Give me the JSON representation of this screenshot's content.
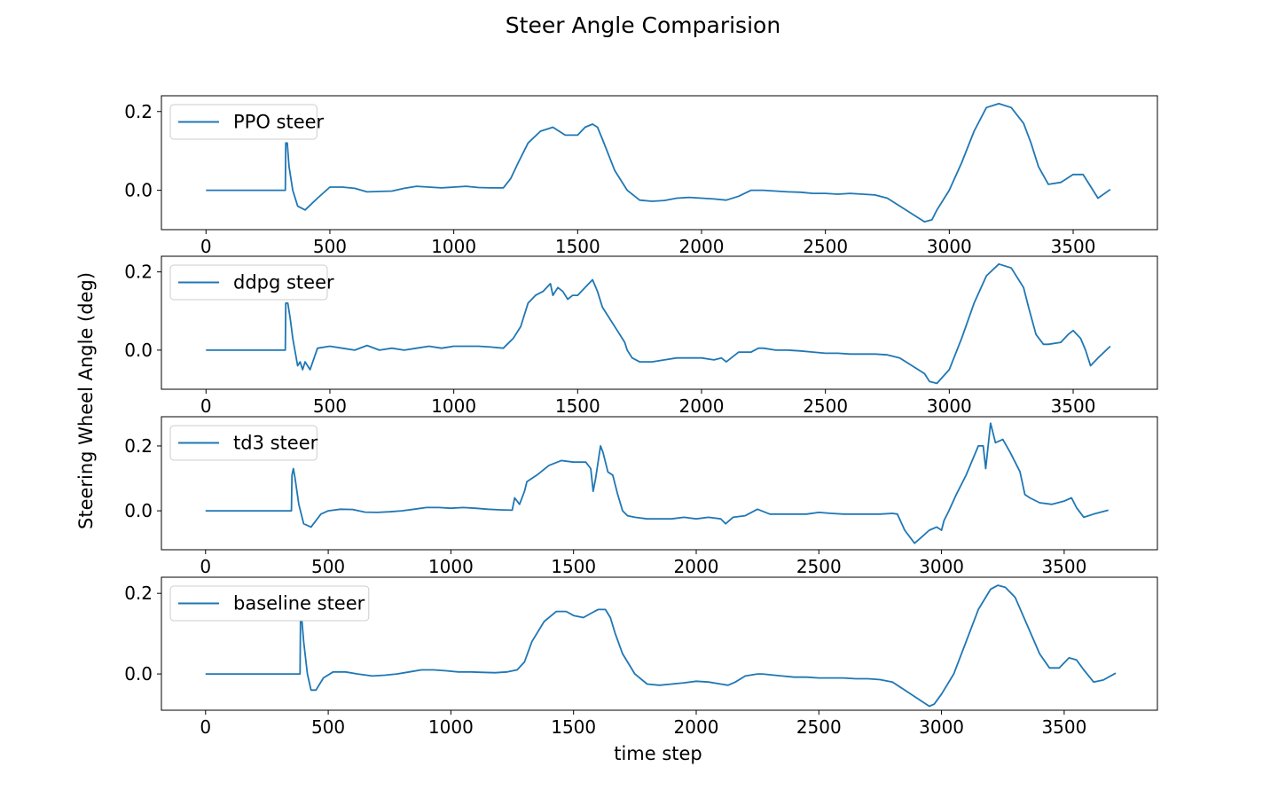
{
  "figure": {
    "title": "Steer Angle Comparision",
    "ylabel": "Steering Wheel Angle (deg)",
    "xlabel": "time step",
    "line_color": "#1f77b4"
  },
  "chart_data": [
    {
      "type": "line",
      "series": [
        {
          "name": "PPO steer"
        }
      ],
      "xlim": [
        -180,
        3840
      ],
      "ylim": [
        -0.1,
        0.24
      ],
      "xticks": [
        0,
        500,
        1000,
        1500,
        2000,
        2500,
        3000,
        3500
      ],
      "xtick_labels": [
        "0",
        "500",
        "1000",
        "1500",
        "2000",
        "2500",
        "3000",
        "3500"
      ],
      "yticks": [
        0.0,
        0.2
      ],
      "ytick_labels": [
        "0.0",
        "0.2"
      ],
      "legend": "upper-left",
      "x": [
        0,
        320,
        322,
        328,
        335,
        350,
        370,
        400,
        450,
        500,
        550,
        600,
        650,
        700,
        750,
        800,
        850,
        900,
        950,
        1000,
        1050,
        1100,
        1150,
        1200,
        1230,
        1260,
        1300,
        1350,
        1400,
        1450,
        1500,
        1530,
        1560,
        1580,
        1600,
        1650,
        1700,
        1750,
        1800,
        1850,
        1900,
        1950,
        2000,
        2050,
        2100,
        2150,
        2200,
        2250,
        2300,
        2350,
        2400,
        2450,
        2500,
        2550,
        2600,
        2650,
        2700,
        2750,
        2800,
        2850,
        2900,
        2930,
        2950,
        3000,
        3050,
        3100,
        3150,
        3200,
        3250,
        3300,
        3330,
        3360,
        3400,
        3450,
        3500,
        3540,
        3570,
        3600,
        3650
      ],
      "y": [
        0.0,
        0.0,
        0.12,
        0.12,
        0.06,
        0.0,
        -0.04,
        -0.05,
        -0.02,
        0.008,
        0.008,
        0.005,
        -0.004,
        -0.003,
        -0.002,
        0.005,
        0.01,
        0.008,
        0.006,
        0.008,
        0.01,
        0.007,
        0.006,
        0.006,
        0.03,
        0.07,
        0.12,
        0.15,
        0.16,
        0.14,
        0.14,
        0.16,
        0.168,
        0.16,
        0.13,
        0.05,
        0.0,
        -0.025,
        -0.028,
        -0.026,
        -0.02,
        -0.018,
        -0.02,
        -0.022,
        -0.025,
        -0.015,
        0.0,
        0.0,
        -0.002,
        -0.004,
        -0.005,
        -0.008,
        -0.008,
        -0.01,
        -0.008,
        -0.01,
        -0.012,
        -0.02,
        -0.04,
        -0.06,
        -0.08,
        -0.075,
        -0.05,
        0.0,
        0.07,
        0.15,
        0.21,
        0.22,
        0.21,
        0.17,
        0.12,
        0.06,
        0.015,
        0.02,
        0.04,
        0.04,
        0.01,
        -0.02,
        0.002
      ]
    },
    {
      "type": "line",
      "series": [
        {
          "name": "ddpg steer"
        }
      ],
      "xlim": [
        -180,
        3840
      ],
      "ylim": [
        -0.1,
        0.24
      ],
      "xticks": [
        0,
        500,
        1000,
        1500,
        2000,
        2500,
        3000,
        3500
      ],
      "xtick_labels": [
        "0",
        "500",
        "1000",
        "1500",
        "2000",
        "2500",
        "3000",
        "3500"
      ],
      "yticks": [
        0.0,
        0.2
      ],
      "ytick_labels": [
        "0.0",
        "0.2"
      ],
      "legend": "upper-left",
      "x": [
        0,
        320,
        322,
        330,
        340,
        350,
        370,
        380,
        390,
        400,
        420,
        450,
        500,
        550,
        600,
        650,
        700,
        750,
        800,
        850,
        900,
        950,
        1000,
        1050,
        1100,
        1150,
        1200,
        1240,
        1270,
        1300,
        1330,
        1360,
        1390,
        1400,
        1420,
        1440,
        1460,
        1480,
        1500,
        1530,
        1560,
        1580,
        1600,
        1630,
        1660,
        1690,
        1700,
        1720,
        1750,
        1800,
        1850,
        1900,
        1950,
        2000,
        2050,
        2080,
        2100,
        2150,
        2200,
        2230,
        2250,
        2300,
        2350,
        2400,
        2450,
        2500,
        2550,
        2600,
        2650,
        2700,
        2750,
        2800,
        2850,
        2900,
        2920,
        2950,
        3000,
        3050,
        3100,
        3150,
        3200,
        3250,
        3300,
        3320,
        3350,
        3380,
        3400,
        3450,
        3480,
        3500,
        3530,
        3550,
        3570,
        3600,
        3650
      ],
      "y": [
        0.0,
        0.0,
        0.12,
        0.12,
        0.08,
        0.03,
        -0.04,
        -0.03,
        -0.05,
        -0.03,
        -0.05,
        0.005,
        0.01,
        0.005,
        0.0,
        0.012,
        0.0,
        0.005,
        0.0,
        0.005,
        0.01,
        0.005,
        0.01,
        0.01,
        0.01,
        0.008,
        0.005,
        0.03,
        0.06,
        0.12,
        0.14,
        0.15,
        0.17,
        0.14,
        0.16,
        0.15,
        0.13,
        0.14,
        0.14,
        0.16,
        0.18,
        0.15,
        0.11,
        0.08,
        0.05,
        0.02,
        0.0,
        -0.02,
        -0.03,
        -0.03,
        -0.025,
        -0.02,
        -0.02,
        -0.02,
        -0.025,
        -0.02,
        -0.03,
        -0.005,
        -0.005,
        0.005,
        0.005,
        0.0,
        0.0,
        -0.002,
        -0.005,
        -0.008,
        -0.008,
        -0.01,
        -0.01,
        -0.01,
        -0.012,
        -0.02,
        -0.04,
        -0.06,
        -0.08,
        -0.085,
        -0.05,
        0.03,
        0.12,
        0.19,
        0.22,
        0.21,
        0.16,
        0.11,
        0.04,
        0.015,
        0.015,
        0.02,
        0.04,
        0.05,
        0.03,
        0.0,
        -0.04,
        -0.02,
        0.01
      ]
    },
    {
      "type": "line",
      "series": [
        {
          "name": "td3 steer"
        }
      ],
      "xlim": [
        -180,
        3880
      ],
      "ylim": [
        -0.12,
        0.29
      ],
      "xticks": [
        0,
        500,
        1000,
        1500,
        2000,
        2500,
        3000,
        3500
      ],
      "xtick_labels": [
        "0",
        "500",
        "1000",
        "1500",
        "2000",
        "2500",
        "3000",
        "3500"
      ],
      "yticks": [
        0.0,
        0.2
      ],
      "ytick_labels": [
        "0.0",
        "0.2"
      ],
      "legend": "upper-left",
      "x": [
        0,
        350,
        352,
        358,
        365,
        380,
        400,
        430,
        470,
        500,
        550,
        600,
        650,
        700,
        750,
        800,
        850,
        900,
        950,
        1000,
        1050,
        1100,
        1150,
        1200,
        1250,
        1260,
        1280,
        1300,
        1310,
        1350,
        1400,
        1450,
        1500,
        1550,
        1570,
        1580,
        1590,
        1610,
        1620,
        1640,
        1660,
        1680,
        1700,
        1720,
        1750,
        1800,
        1850,
        1900,
        1950,
        2000,
        2050,
        2100,
        2120,
        2150,
        2200,
        2250,
        2300,
        2350,
        2400,
        2450,
        2500,
        2550,
        2600,
        2650,
        2700,
        2750,
        2800,
        2820,
        2850,
        2890,
        2920,
        2950,
        2980,
        3000,
        3010,
        3030,
        3060,
        3100,
        3150,
        3170,
        3180,
        3200,
        3220,
        3250,
        3280,
        3300,
        3320,
        3340,
        3360,
        3400,
        3450,
        3500,
        3530,
        3550,
        3580,
        3620,
        3680
      ],
      "y": [
        0.0,
        0.0,
        0.11,
        0.13,
        0.1,
        0.02,
        -0.04,
        -0.05,
        -0.01,
        0.0,
        0.005,
        0.004,
        -0.004,
        -0.005,
        -0.003,
        0.0,
        0.005,
        0.01,
        0.01,
        0.008,
        0.01,
        0.008,
        0.005,
        0.003,
        0.002,
        0.04,
        0.02,
        0.06,
        0.09,
        0.11,
        0.14,
        0.155,
        0.15,
        0.15,
        0.13,
        0.06,
        0.1,
        0.2,
        0.18,
        0.12,
        0.11,
        0.05,
        0.0,
        -0.015,
        -0.02,
        -0.025,
        -0.025,
        -0.025,
        -0.02,
        -0.025,
        -0.02,
        -0.025,
        -0.04,
        -0.02,
        -0.015,
        0.005,
        -0.01,
        -0.01,
        -0.01,
        -0.01,
        -0.005,
        -0.008,
        -0.01,
        -0.01,
        -0.01,
        -0.01,
        -0.008,
        -0.01,
        -0.06,
        -0.1,
        -0.08,
        -0.06,
        -0.05,
        -0.06,
        -0.03,
        0.0,
        0.05,
        0.11,
        0.2,
        0.2,
        0.13,
        0.27,
        0.21,
        0.22,
        0.18,
        0.15,
        0.12,
        0.05,
        0.04,
        0.025,
        0.02,
        0.03,
        0.04,
        0.01,
        -0.02,
        -0.01,
        0.002
      ]
    },
    {
      "type": "line",
      "series": [
        {
          "name": "baseline steer"
        }
      ],
      "xlim": [
        -180,
        3880
      ],
      "ylim": [
        -0.09,
        0.24
      ],
      "xticks": [
        0,
        500,
        1000,
        1500,
        2000,
        2500,
        3000,
        3500
      ],
      "xtick_labels": [
        "0",
        "500",
        "1000",
        "1500",
        "2000",
        "2500",
        "3000",
        "3500"
      ],
      "yticks": [
        0.0,
        0.2
      ],
      "ytick_labels": [
        "0.0",
        "0.2"
      ],
      "legend": "upper-left",
      "x": [
        0,
        385,
        387,
        393,
        400,
        415,
        430,
        450,
        480,
        520,
        570,
        620,
        680,
        730,
        780,
        830,
        880,
        930,
        980,
        1030,
        1080,
        1130,
        1180,
        1230,
        1270,
        1300,
        1330,
        1380,
        1430,
        1470,
        1500,
        1540,
        1570,
        1600,
        1630,
        1650,
        1670,
        1700,
        1750,
        1800,
        1850,
        1900,
        1950,
        2000,
        2050,
        2100,
        2130,
        2160,
        2200,
        2250,
        2270,
        2300,
        2350,
        2400,
        2450,
        2500,
        2550,
        2600,
        2650,
        2700,
        2750,
        2800,
        2850,
        2900,
        2950,
        2970,
        3000,
        3050,
        3100,
        3150,
        3200,
        3230,
        3260,
        3300,
        3350,
        3400,
        3440,
        3480,
        3520,
        3550,
        3580,
        3620,
        3660,
        3710
      ],
      "y": [
        0.0,
        0.0,
        0.13,
        0.13,
        0.08,
        0.0,
        -0.04,
        -0.04,
        -0.01,
        0.005,
        0.005,
        0.0,
        -0.005,
        -0.003,
        0.0,
        0.005,
        0.01,
        0.01,
        0.008,
        0.005,
        0.005,
        0.004,
        0.003,
        0.005,
        0.01,
        0.03,
        0.08,
        0.13,
        0.155,
        0.155,
        0.145,
        0.14,
        0.15,
        0.16,
        0.16,
        0.14,
        0.1,
        0.05,
        0.0,
        -0.025,
        -0.028,
        -0.025,
        -0.022,
        -0.018,
        -0.02,
        -0.025,
        -0.028,
        -0.02,
        -0.005,
        0.0,
        0.0,
        -0.002,
        -0.005,
        -0.008,
        -0.008,
        -0.01,
        -0.01,
        -0.01,
        -0.012,
        -0.012,
        -0.014,
        -0.02,
        -0.04,
        -0.06,
        -0.08,
        -0.075,
        -0.05,
        0.0,
        0.08,
        0.16,
        0.21,
        0.22,
        0.215,
        0.19,
        0.12,
        0.05,
        0.015,
        0.015,
        0.04,
        0.035,
        0.01,
        -0.02,
        -0.015,
        0.002
      ]
    }
  ]
}
